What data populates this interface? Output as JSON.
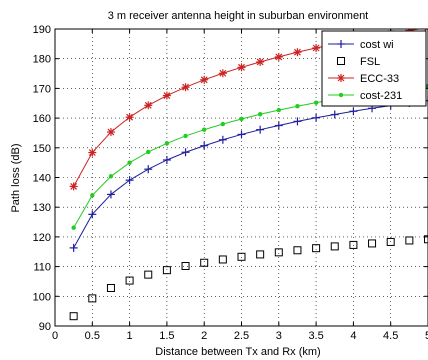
{
  "chart_data": {
    "type": "line",
    "title": "3 m receiver antenna height in suburban environment",
    "xlabel": "Distance between Tx and Rx (km)",
    "ylabel": "Path loss (dB)",
    "xlim": [
      0,
      5
    ],
    "ylim": [
      90,
      190
    ],
    "xticks": [
      0,
      0.5,
      1,
      1.5,
      2,
      2.5,
      3,
      3.5,
      4,
      4.5,
      5
    ],
    "yticks": [
      90,
      100,
      110,
      120,
      130,
      140,
      150,
      160,
      170,
      180,
      190
    ],
    "grid": true,
    "legend_position": "top-right",
    "x": [
      0.25,
      0.5,
      0.75,
      1,
      1.25,
      1.5,
      1.75,
      2,
      2.25,
      2.5,
      2.75,
      3,
      3.25,
      3.5,
      3.75,
      4,
      4.25,
      4.5,
      4.75,
      5
    ],
    "series": [
      {
        "name": "cost wi",
        "color": "#1f1f9f",
        "marker": "plus",
        "values": [
          116.3,
          127.6,
          134.3,
          139.1,
          142.8,
          145.9,
          148.5,
          150.7,
          152.7,
          154.5,
          156.1,
          157.5,
          158.9,
          160.1,
          161.2,
          162.3,
          163.3,
          164.2,
          165.1,
          165.9
        ]
      },
      {
        "name": "FSL",
        "color": "#000000",
        "marker": "square",
        "values": [
          93.3,
          99.3,
          102.8,
          105.3,
          107.3,
          108.8,
          110.2,
          111.3,
          112.4,
          113.3,
          114.1,
          114.8,
          115.5,
          116.2,
          116.8,
          117.3,
          117.8,
          118.3,
          118.8,
          119.2
        ]
      },
      {
        "name": "ECC-33",
        "color": "#cc2222",
        "marker": "star",
        "values": [
          137,
          148.4,
          155.3,
          160.3,
          164.3,
          167.6,
          170.4,
          172.9,
          175.1,
          177.1,
          178.9,
          180.6,
          182.2,
          183.6,
          184.9,
          186.2,
          187.4,
          188.5,
          189.5,
          190.5
        ]
      },
      {
        "name": "cost-231",
        "color": "#22cc22",
        "marker": "dot",
        "values": [
          123.1,
          134,
          140.4,
          145,
          148.6,
          151.5,
          154,
          156.1,
          158,
          159.7,
          161.3,
          162.7,
          164,
          165.2,
          166.3,
          167.3,
          168.3,
          169.2,
          170,
          170.8
        ]
      }
    ]
  }
}
